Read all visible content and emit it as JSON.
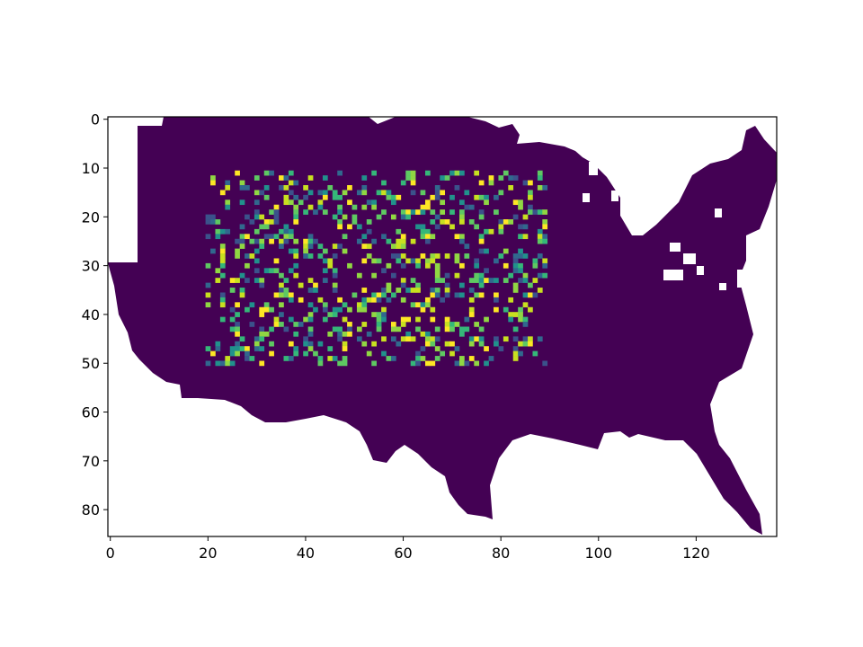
{
  "chart_data": {
    "type": "heatmap",
    "title": "",
    "xlabel": "",
    "ylabel": "",
    "xlim": [
      -0.5,
      136.5
    ],
    "ylim": [
      85.5,
      -0.5
    ],
    "x_ticks": [
      0,
      20,
      40,
      60,
      80,
      100,
      120
    ],
    "x_tick_labels": [
      "0",
      "20",
      "40",
      "60",
      "80",
      "100",
      "120"
    ],
    "y_ticks": [
      0,
      10,
      20,
      30,
      40,
      50,
      60,
      70,
      80
    ],
    "y_tick_labels": [
      "0",
      "10",
      "20",
      "30",
      "40",
      "50",
      "60",
      "70",
      "80"
    ],
    "colormap": "viridis",
    "masked_outside": "contiguous United States outline (white, no data)",
    "background_value": 0,
    "background_color": "#440154",
    "random_block": {
      "x_range": [
        20,
        89
      ],
      "y_range": [
        11,
        50
      ],
      "values": "sparse random cells valued 0–1 on viridis scale"
    },
    "grid": false,
    "legend": "none"
  }
}
